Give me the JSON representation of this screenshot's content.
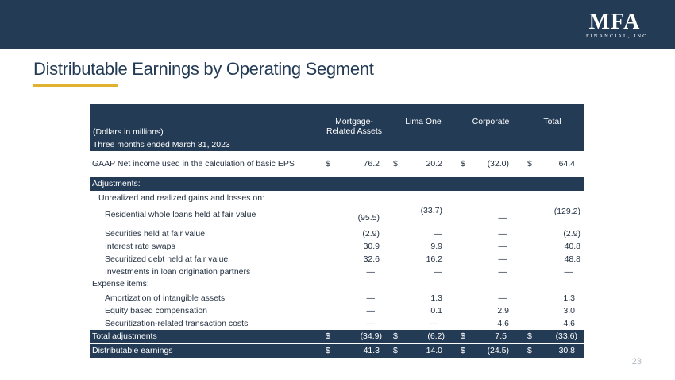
{
  "logo": {
    "main": "MFA",
    "sub": "FINANCIAL, INC."
  },
  "title": "Distributable Earnings by Operating Segment",
  "page_number": "23",
  "table": {
    "header": {
      "units": "(Dollars in millions)",
      "period": "Three months ended March 31, 2023",
      "col1": "Mortgage-",
      "col1b": "Related Assets",
      "col2": "Lima One",
      "col3": "Corporate",
      "col4": "Total"
    },
    "gaap": {
      "label": "GAAP Net income used in the calculation of basic EPS",
      "d": "$",
      "v1": "76.2",
      "v2": "20.2",
      "v3": "(32.0)",
      "v4": "64.4"
    },
    "adjustments_label": "Adjustments:",
    "unrealized_label": "Unrealized and realized gains and losses on:",
    "rows1": [
      {
        "label": "Residential whole loans held at fair value",
        "v1": "(95.5)",
        "v2": "(33.7)",
        "v3": "—",
        "v4": "(129.2)"
      },
      {
        "label": "Securities held at fair value",
        "v1": "(2.9)",
        "v2": "—",
        "v3": "—",
        "v4": "(2.9)"
      },
      {
        "label": "Interest rate swaps",
        "v1": "30.9",
        "v2": "9.9",
        "v3": "—",
        "v4": "40.8"
      },
      {
        "label": "Securitized debt held at fair value",
        "v1": "32.6",
        "v2": "16.2",
        "v3": "—",
        "v4": "48.8"
      },
      {
        "label": "Investments in loan origination partners",
        "v1": "—",
        "v2": "—",
        "v3": "—",
        "v4": "—"
      }
    ],
    "expense_label": "Expense items:",
    "rows2": [
      {
        "label": "Amortization of intangible assets",
        "v1": "—",
        "v2": "1.3",
        "v3": "—",
        "v4": "1.3"
      },
      {
        "label": "Equity based compensation",
        "v1": "—",
        "v2": "0.1",
        "v3": "2.9",
        "v4": "3.0"
      },
      {
        "label": "Securitization-related transaction costs",
        "v1": "—",
        "v2": "—",
        "v3": "4.6",
        "v4": "4.6"
      }
    ],
    "total_adj": {
      "label": "Total adjustments",
      "d": "$",
      "v1": "(34.9)",
      "v2": "(6.2)",
      "v3": "7.5",
      "v4": "(33.6)"
    },
    "distributable": {
      "label": "Distributable earnings",
      "d": "$",
      "v1": "41.3",
      "v2": "14.0",
      "v3": "(24.5)",
      "v4": "30.8"
    }
  }
}
